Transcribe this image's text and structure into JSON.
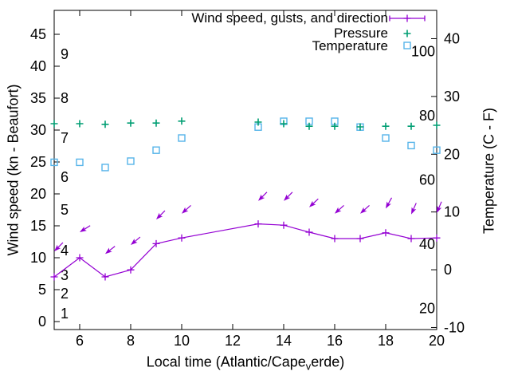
{
  "chart_data": {
    "type": "line",
    "title": "",
    "grid": false,
    "legend_position": "top-right-inside",
    "x_axis": {
      "label_pre": "Local time (Atlantic/Cape",
      "label_sub": "v",
      "label_post": "erde)",
      "range": [
        5,
        20
      ],
      "ticks": [
        6,
        8,
        10,
        12,
        14,
        16,
        18,
        20
      ]
    },
    "y_left_axis": {
      "label": "Wind speed (kn - Beaufort)",
      "range_kn": [
        -1.25,
        48.75
      ],
      "ticks_kn": [
        0,
        5,
        10,
        15,
        20,
        25,
        30,
        35,
        40,
        45
      ],
      "beaufort_scale_labels": [
        {
          "text": "1",
          "kn": 1.25
        },
        {
          "text": "2",
          "kn": 4.4
        },
        {
          "text": "3",
          "kn": 7.25
        },
        {
          "text": "4",
          "kn": 11.1
        },
        {
          "text": "5",
          "kn": 17.5
        },
        {
          "text": "6",
          "kn": 22.6
        },
        {
          "text": "7",
          "kn": 28.75
        },
        {
          "text": "8",
          "kn": 35
        },
        {
          "text": "9",
          "kn": 41.9
        }
      ]
    },
    "y_right_axis": {
      "label": "Temperature (C - F)",
      "range_c": [
        -10.35,
        44.9
      ],
      "ticks_c": [
        -10,
        0,
        10,
        20,
        30,
        40
      ],
      "fahrenheit_scale_labels": [
        20,
        40,
        60,
        80,
        100
      ]
    },
    "hours": [
      5,
      6,
      7,
      8,
      9,
      10,
      13,
      14,
      15,
      16,
      17,
      18,
      19,
      20
    ],
    "series": [
      {
        "name": "Wind speed, gusts, and direction",
        "type": "line-with-plus-markers-and-gust-arrows",
        "color": "#9400d3",
        "wind_kn": [
          7,
          10,
          7,
          8.1,
          12.2,
          13.1,
          15.3,
          15.1,
          14,
          13,
          13,
          13.9,
          13,
          13.1
        ],
        "gust_kn": [
          11,
          14,
          10.6,
          12,
          16,
          16.9,
          18.9,
          18.9,
          17.9,
          16.9,
          16.9,
          17.7,
          16.8,
          17
        ],
        "arrow_point_deg_screen": [
          135,
          148,
          142,
          140,
          135,
          138,
          135,
          135,
          137,
          138,
          138,
          119,
          114,
          113
        ]
      },
      {
        "name": "Pressure",
        "type": "scatter-plus",
        "color": "#009e73",
        "y_on_left_kn_axis": [
          31,
          31,
          30.9,
          31.1,
          31.1,
          31.4,
          31.25,
          31,
          30.6,
          30.6,
          30.5,
          30.6,
          30.6,
          30.75
        ]
      },
      {
        "name": "Temperature",
        "type": "scatter-open-square",
        "color": "#56b4e9",
        "temperature_c": [
          18.6,
          18.6,
          17.7,
          18.8,
          20.7,
          22.8,
          24.7,
          25.7,
          25.7,
          25.7,
          24.7,
          22.8,
          21.5,
          20.7
        ]
      }
    ]
  },
  "colors": {
    "background": "#ffffff",
    "axis": "#000000",
    "text": "#000000",
    "wind": "#9400d3",
    "pressure": "#009e73",
    "temperature": "#56b4e9"
  }
}
